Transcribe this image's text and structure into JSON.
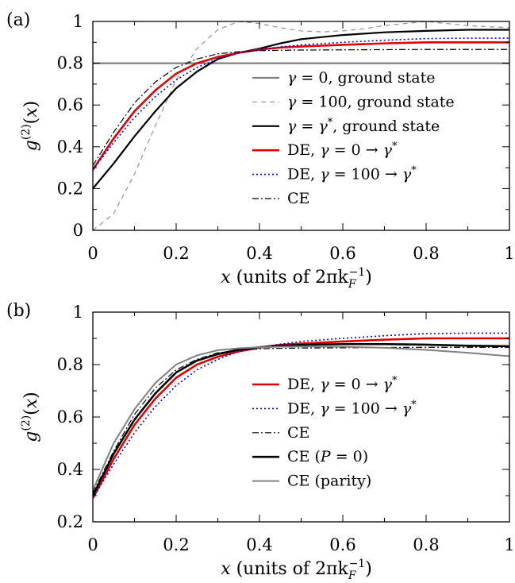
{
  "chart_data": [
    {
      "type": "line",
      "panel_label": "(a)",
      "xlabel_prefix": "x",
      "xlabel_text": " (units of 2πk",
      "xlabel_sub": "F",
      "xlabel_sup": "−1",
      "xlabel_suffix": ")",
      "ylabel": "g",
      "ylabel_sup": "(2)",
      "ylabel_arg": "(x)",
      "xlim": [
        0,
        1
      ],
      "ylim": [
        0,
        1
      ],
      "xticks": [
        "0",
        "0.2",
        "0.4",
        "0.6",
        "0.8",
        "1"
      ],
      "yticks": [
        "0",
        "0.2",
        "0.4",
        "0.6",
        "0.8",
        "1"
      ],
      "legend_position": "right",
      "series": [
        {
          "name": "γ = 0, ground state",
          "color": "#808080",
          "dash": "",
          "width": 2.2,
          "x": [
            0,
            1
          ],
          "y": [
            0.8,
            0.8
          ]
        },
        {
          "name": "γ = 100, ground state",
          "color": "#999999",
          "dash": "6,5",
          "width": 1.3,
          "x": [
            0,
            0.05,
            0.1,
            0.15,
            0.2,
            0.25,
            0.3,
            0.35,
            0.4,
            0.45,
            0.5,
            0.55,
            0.6,
            0.65,
            0.7,
            0.75,
            0.8,
            0.85,
            0.9,
            0.95,
            1.0
          ],
          "y": [
            0,
            0.08,
            0.27,
            0.5,
            0.72,
            0.87,
            0.96,
            1.0,
            0.99,
            0.97,
            0.955,
            0.95,
            0.955,
            0.965,
            0.98,
            0.99,
            1.0,
            0.99,
            0.98,
            0.975,
            0.97
          ]
        },
        {
          "name": "γ = γ*, ground state",
          "color": "#000000",
          "dash": "",
          "width": 2.2,
          "x": [
            0,
            0.05,
            0.1,
            0.15,
            0.2,
            0.25,
            0.3,
            0.35,
            0.4,
            0.45,
            0.5,
            0.6,
            0.7,
            0.8,
            0.9,
            1.0
          ],
          "y": [
            0.2,
            0.32,
            0.45,
            0.57,
            0.68,
            0.76,
            0.82,
            0.85,
            0.87,
            0.895,
            0.915,
            0.935,
            0.948,
            0.955,
            0.96,
            0.96
          ]
        },
        {
          "name": "DE, γ = 0 → γ*",
          "color": "#e00000",
          "dash": "",
          "width": 2.6,
          "x": [
            0,
            0.05,
            0.1,
            0.15,
            0.2,
            0.25,
            0.3,
            0.35,
            0.4,
            0.45,
            0.5,
            0.6,
            0.7,
            0.8,
            0.9,
            1.0
          ],
          "y": [
            0.29,
            0.44,
            0.57,
            0.67,
            0.75,
            0.8,
            0.83,
            0.85,
            0.865,
            0.875,
            0.88,
            0.888,
            0.895,
            0.9,
            0.9,
            0.9
          ]
        },
        {
          "name": "DE, γ = 100 → γ*",
          "color": "#0000dd",
          "dash": "2,3",
          "width": 1.6,
          "x": [
            0,
            0.05,
            0.1,
            0.15,
            0.2,
            0.25,
            0.3,
            0.35,
            0.4,
            0.45,
            0.5,
            0.6,
            0.7,
            0.8,
            0.9,
            1.0
          ],
          "y": [
            0.29,
            0.42,
            0.54,
            0.64,
            0.72,
            0.78,
            0.82,
            0.85,
            0.865,
            0.878,
            0.888,
            0.9,
            0.91,
            0.918,
            0.92,
            0.92
          ]
        },
        {
          "name": "CE",
          "color": "#000000",
          "dash": "8,3,2,3",
          "width": 1.2,
          "x": [
            0,
            0.05,
            0.1,
            0.15,
            0.2,
            0.25,
            0.3,
            0.35,
            0.4,
            0.45,
            0.5,
            0.6,
            0.7,
            0.8,
            0.9,
            1.0
          ],
          "y": [
            0.31,
            0.47,
            0.61,
            0.71,
            0.78,
            0.82,
            0.845,
            0.855,
            0.86,
            0.862,
            0.863,
            0.864,
            0.865,
            0.866,
            0.866,
            0.866
          ]
        }
      ]
    },
    {
      "type": "line",
      "panel_label": "(b)",
      "xlabel_prefix": "x",
      "xlabel_text": " (units of 2πk",
      "xlabel_sub": "F",
      "xlabel_sup": "−1",
      "xlabel_suffix": ")",
      "ylabel": "g",
      "ylabel_sup": "(2)",
      "ylabel_arg": "(x)",
      "xlim": [
        0,
        1
      ],
      "ylim": [
        0.2,
        1
      ],
      "xticks": [
        "0",
        "0.2",
        "0.4",
        "0.6",
        "0.8",
        "1"
      ],
      "yticks": [
        "0.2",
        "0.4",
        "0.6",
        "0.8",
        "1"
      ],
      "legend_position": "right",
      "series": [
        {
          "name": "DE, γ = 0 → γ*",
          "color": "#e00000",
          "dash": "",
          "width": 2.6,
          "x": [
            0,
            0.05,
            0.1,
            0.15,
            0.2,
            0.25,
            0.3,
            0.35,
            0.4,
            0.45,
            0.5,
            0.6,
            0.7,
            0.8,
            0.9,
            1.0
          ],
          "y": [
            0.29,
            0.44,
            0.57,
            0.67,
            0.75,
            0.8,
            0.83,
            0.85,
            0.865,
            0.875,
            0.88,
            0.888,
            0.895,
            0.9,
            0.9,
            0.9
          ]
        },
        {
          "name": "DE, γ = 100 → γ*",
          "color": "#0000dd",
          "dash": "2,3",
          "width": 1.6,
          "x": [
            0,
            0.05,
            0.1,
            0.15,
            0.2,
            0.25,
            0.3,
            0.35,
            0.4,
            0.45,
            0.5,
            0.6,
            0.7,
            0.8,
            0.9,
            1.0
          ],
          "y": [
            0.29,
            0.42,
            0.54,
            0.64,
            0.72,
            0.78,
            0.82,
            0.85,
            0.865,
            0.878,
            0.888,
            0.9,
            0.91,
            0.918,
            0.92,
            0.92
          ]
        },
        {
          "name": "CE",
          "color": "#000000",
          "dash": "8,3,2,3",
          "width": 1.2,
          "x": [
            0,
            0.05,
            0.1,
            0.15,
            0.2,
            0.25,
            0.3,
            0.35,
            0.4,
            0.45,
            0.5,
            0.6,
            0.7,
            0.8,
            0.9,
            1.0
          ],
          "y": [
            0.31,
            0.47,
            0.61,
            0.71,
            0.78,
            0.82,
            0.845,
            0.855,
            0.86,
            0.862,
            0.863,
            0.864,
            0.865,
            0.866,
            0.866,
            0.866
          ]
        },
        {
          "name": "CE (P = 0)",
          "color": "#000000",
          "dash": "",
          "width": 2.6,
          "x": [
            0,
            0.05,
            0.1,
            0.15,
            0.2,
            0.25,
            0.3,
            0.35,
            0.4,
            0.45,
            0.5,
            0.6,
            0.7,
            0.8,
            0.9,
            1.0
          ],
          "y": [
            0.3,
            0.46,
            0.59,
            0.69,
            0.77,
            0.815,
            0.84,
            0.857,
            0.866,
            0.872,
            0.875,
            0.878,
            0.878,
            0.876,
            0.872,
            0.87
          ]
        },
        {
          "name": "CE (parity)",
          "color": "#808080",
          "dash": "",
          "width": 2.0,
          "x": [
            0,
            0.05,
            0.1,
            0.15,
            0.2,
            0.25,
            0.3,
            0.35,
            0.4,
            0.45,
            0.5,
            0.6,
            0.7,
            0.8,
            0.9,
            1.0
          ],
          "y": [
            0.32,
            0.5,
            0.63,
            0.73,
            0.8,
            0.835,
            0.855,
            0.862,
            0.866,
            0.868,
            0.869,
            0.868,
            0.864,
            0.856,
            0.845,
            0.832
          ]
        }
      ]
    }
  ]
}
